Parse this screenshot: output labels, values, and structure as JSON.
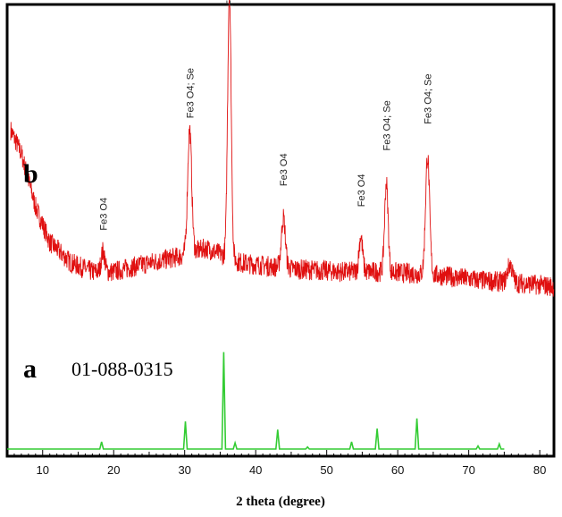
{
  "chart_data": {
    "type": "line",
    "xlabel": "2 theta (degree)",
    "ylabel": "",
    "xlim": [
      5,
      82
    ],
    "xticks": [
      10,
      20,
      30,
      40,
      50,
      60,
      70,
      80
    ],
    "grid": false,
    "panels": [
      {
        "letter": "b",
        "name": "",
        "color": "#e01010"
      },
      {
        "letter": "a",
        "name": "01-088-0315",
        "color": "#33cc33"
      }
    ],
    "series_b": {
      "color": "#e01010",
      "baseline": [
        [
          5.5,
          0.62
        ],
        [
          7,
          0.54
        ],
        [
          9,
          0.36
        ],
        [
          11,
          0.24
        ],
        [
          14,
          0.17
        ],
        [
          17,
          0.14
        ],
        [
          20,
          0.14
        ],
        [
          25,
          0.17
        ],
        [
          29,
          0.19
        ],
        [
          33,
          0.22
        ],
        [
          38,
          0.17
        ],
        [
          45,
          0.15
        ],
        [
          52,
          0.14
        ],
        [
          58,
          0.14
        ],
        [
          65,
          0.13
        ],
        [
          72,
          0.11
        ],
        [
          78,
          0.1
        ],
        [
          82,
          0.09
        ]
      ],
      "peaks": [
        {
          "x": 18.5,
          "h": 0.07,
          "w": 0.35
        },
        {
          "x": 30.7,
          "h": 0.42,
          "w": 0.4
        },
        {
          "x": 36.3,
          "h": 0.9,
          "w": 0.35
        },
        {
          "x": 43.9,
          "h": 0.17,
          "w": 0.4
        },
        {
          "x": 54.8,
          "h": 0.12,
          "w": 0.35
        },
        {
          "x": 58.4,
          "h": 0.3,
          "w": 0.35
        },
        {
          "x": 64.2,
          "h": 0.4,
          "w": 0.4
        },
        {
          "x": 75.8,
          "h": 0.06,
          "w": 0.5
        }
      ],
      "peak_labels": [
        {
          "x": 18.5,
          "y": 0.28,
          "text": "Fe3 O4"
        },
        {
          "x": 30.7,
          "y": 0.66,
          "text": "Fe3 O4; Se"
        },
        {
          "x": 36.3,
          "y": 1.04,
          "text": "Fe3 O4"
        },
        {
          "x": 43.9,
          "y": 0.43,
          "text": "Fe3 O4"
        },
        {
          "x": 54.8,
          "y": 0.36,
          "text": "Fe3 O4"
        },
        {
          "x": 58.4,
          "y": 0.55,
          "text": "Fe3 O4; Se"
        },
        {
          "x": 64.2,
          "y": 0.64,
          "text": "Fe3 O4; Se"
        }
      ]
    },
    "series_a": {
      "color": "#33cc33",
      "x_start": 5,
      "x_end": 75,
      "peaks": [
        {
          "x": 18.3,
          "h": 0.07
        },
        {
          "x": 30.1,
          "h": 0.27
        },
        {
          "x": 35.5,
          "h": 0.95
        },
        {
          "x": 37.1,
          "h": 0.06
        },
        {
          "x": 43.1,
          "h": 0.19
        },
        {
          "x": 47.3,
          "h": 0.02
        },
        {
          "x": 53.5,
          "h": 0.07
        },
        {
          "x": 57.1,
          "h": 0.2
        },
        {
          "x": 62.7,
          "h": 0.3
        },
        {
          "x": 71.3,
          "h": 0.03
        },
        {
          "x": 74.3,
          "h": 0.05
        }
      ]
    }
  }
}
